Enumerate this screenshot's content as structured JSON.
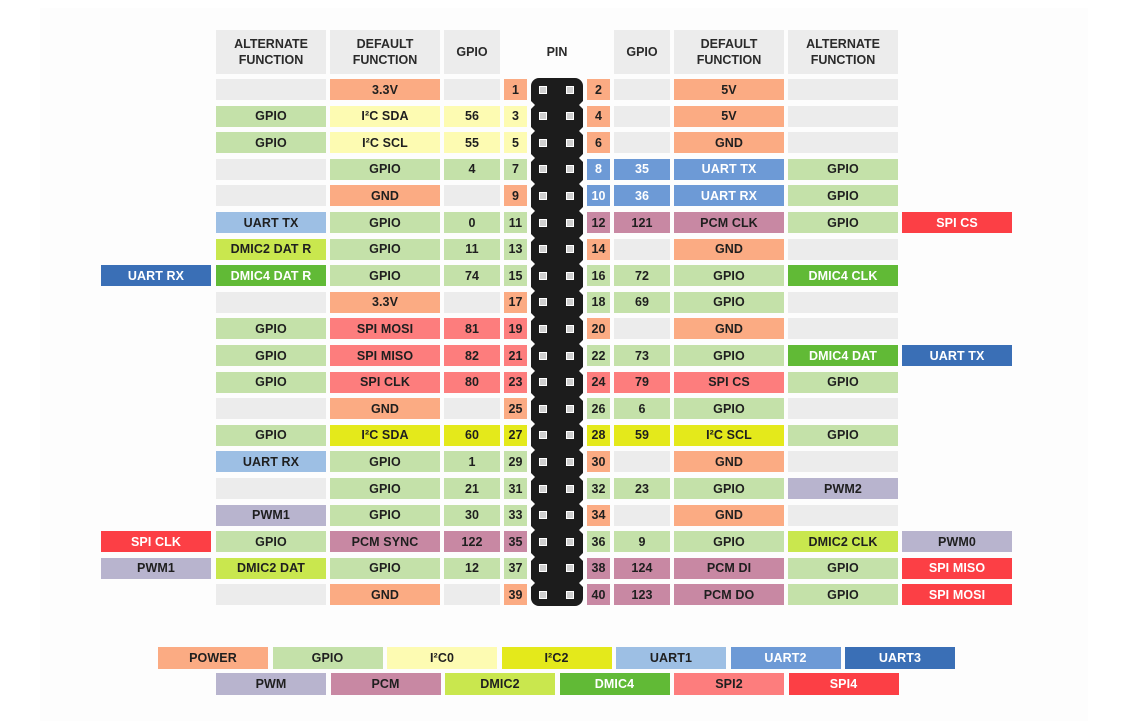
{
  "colors": {
    "power": "#fbab83",
    "gpio": "#c4e1a9",
    "i2c0": "#fdfbb2",
    "i2c2": "#e4e91b",
    "uart1": "#9dbfe4",
    "uart2": "#6d9ad6",
    "uart3": "#3a6fb6",
    "pwm": "#b8b4ce",
    "pcm": "#c888a3",
    "dmic2": "#c9e74e",
    "dmic4": "#61ba36",
    "spi2": "#fd7d7d",
    "spi4": "#fc3f45",
    "empty": "#ececec"
  },
  "headers": {
    "left_alt": "ALTERNATE FUNCTION",
    "left_default": "DEFAULT FUNCTION",
    "left_gpio": "GPIO",
    "pin": "PIN",
    "right_gpio": "GPIO",
    "right_default": "DEFAULT FUNCTION",
    "right_alt": "ALTERNATE FUNCTION"
  },
  "rows": [
    {
      "left": {
        "extra": null,
        "alt": null,
        "def": {
          "text": "3.3V",
          "c": "power"
        },
        "gpio": null,
        "pin": {
          "text": "1",
          "c": "power"
        }
      },
      "right": {
        "pin": {
          "text": "2",
          "c": "power"
        },
        "gpio": null,
        "def": {
          "text": "5V",
          "c": "power"
        },
        "alt": null,
        "extra": null
      }
    },
    {
      "left": {
        "extra": null,
        "alt": {
          "text": "GPIO",
          "c": "gpio"
        },
        "def": {
          "text": "I²C SDA",
          "c": "i2c0"
        },
        "gpio": {
          "text": "56",
          "c": "i2c0"
        },
        "pin": {
          "text": "3",
          "c": "i2c0"
        }
      },
      "right": {
        "pin": {
          "text": "4",
          "c": "power"
        },
        "gpio": null,
        "def": {
          "text": "5V",
          "c": "power"
        },
        "alt": null,
        "extra": null
      }
    },
    {
      "left": {
        "extra": null,
        "alt": {
          "text": "GPIO",
          "c": "gpio"
        },
        "def": {
          "text": "I²C SCL",
          "c": "i2c0"
        },
        "gpio": {
          "text": "55",
          "c": "i2c0"
        },
        "pin": {
          "text": "5",
          "c": "i2c0"
        }
      },
      "right": {
        "pin": {
          "text": "6",
          "c": "power"
        },
        "gpio": null,
        "def": {
          "text": "GND",
          "c": "power"
        },
        "alt": null,
        "extra": null
      }
    },
    {
      "left": {
        "extra": null,
        "alt": null,
        "def": {
          "text": "GPIO",
          "c": "gpio"
        },
        "gpio": {
          "text": "4",
          "c": "gpio"
        },
        "pin": {
          "text": "7",
          "c": "gpio"
        }
      },
      "right": {
        "pin": {
          "text": "8",
          "c": "uart2"
        },
        "gpio": {
          "text": "35",
          "c": "uart2"
        },
        "def": {
          "text": "UART TX",
          "c": "uart2"
        },
        "alt": {
          "text": "GPIO",
          "c": "gpio"
        },
        "extra": null
      }
    },
    {
      "left": {
        "extra": null,
        "alt": null,
        "def": {
          "text": "GND",
          "c": "power"
        },
        "gpio": null,
        "pin": {
          "text": "9",
          "c": "power"
        }
      },
      "right": {
        "pin": {
          "text": "10",
          "c": "uart2"
        },
        "gpio": {
          "text": "36",
          "c": "uart2"
        },
        "def": {
          "text": "UART RX",
          "c": "uart2"
        },
        "alt": {
          "text": "GPIO",
          "c": "gpio"
        },
        "extra": null
      }
    },
    {
      "left": {
        "extra": null,
        "alt": {
          "text": "UART TX",
          "c": "uart1"
        },
        "def": {
          "text": "GPIO",
          "c": "gpio"
        },
        "gpio": {
          "text": "0",
          "c": "gpio"
        },
        "pin": {
          "text": "11",
          "c": "gpio"
        }
      },
      "right": {
        "pin": {
          "text": "12",
          "c": "pcm"
        },
        "gpio": {
          "text": "121",
          "c": "pcm"
        },
        "def": {
          "text": "PCM CLK",
          "c": "pcm"
        },
        "alt": {
          "text": "GPIO",
          "c": "gpio"
        },
        "extra": {
          "text": "SPI CS",
          "c": "spi4"
        }
      }
    },
    {
      "left": {
        "extra": null,
        "alt": {
          "text": "DMIC2 DAT R",
          "c": "dmic2"
        },
        "def": {
          "text": "GPIO",
          "c": "gpio"
        },
        "gpio": {
          "text": "11",
          "c": "gpio"
        },
        "pin": {
          "text": "13",
          "c": "gpio"
        }
      },
      "right": {
        "pin": {
          "text": "14",
          "c": "power"
        },
        "gpio": null,
        "def": {
          "text": "GND",
          "c": "power"
        },
        "alt": null,
        "extra": null
      }
    },
    {
      "left": {
        "extra": {
          "text": "UART RX",
          "c": "uart3"
        },
        "alt": {
          "text": "DMIC4 DAT R",
          "c": "dmic4"
        },
        "def": {
          "text": "GPIO",
          "c": "gpio"
        },
        "gpio": {
          "text": "74",
          "c": "gpio"
        },
        "pin": {
          "text": "15",
          "c": "gpio"
        }
      },
      "right": {
        "pin": {
          "text": "16",
          "c": "gpio"
        },
        "gpio": {
          "text": "72",
          "c": "gpio"
        },
        "def": {
          "text": "GPIO",
          "c": "gpio"
        },
        "alt": {
          "text": "DMIC4 CLK",
          "c": "dmic4"
        },
        "extra": null
      }
    },
    {
      "left": {
        "extra": null,
        "alt": null,
        "def": {
          "text": "3.3V",
          "c": "power"
        },
        "gpio": null,
        "pin": {
          "text": "17",
          "c": "power"
        }
      },
      "right": {
        "pin": {
          "text": "18",
          "c": "gpio"
        },
        "gpio": {
          "text": "69",
          "c": "gpio"
        },
        "def": {
          "text": "GPIO",
          "c": "gpio"
        },
        "alt": null,
        "extra": null
      }
    },
    {
      "left": {
        "extra": null,
        "alt": {
          "text": "GPIO",
          "c": "gpio"
        },
        "def": {
          "text": "SPI MOSI",
          "c": "spi2"
        },
        "gpio": {
          "text": "81",
          "c": "spi2"
        },
        "pin": {
          "text": "19",
          "c": "spi2"
        }
      },
      "right": {
        "pin": {
          "text": "20",
          "c": "power"
        },
        "gpio": null,
        "def": {
          "text": "GND",
          "c": "power"
        },
        "alt": null,
        "extra": null
      }
    },
    {
      "left": {
        "extra": null,
        "alt": {
          "text": "GPIO",
          "c": "gpio"
        },
        "def": {
          "text": "SPI MISO",
          "c": "spi2"
        },
        "gpio": {
          "text": "82",
          "c": "spi2"
        },
        "pin": {
          "text": "21",
          "c": "spi2"
        }
      },
      "right": {
        "pin": {
          "text": "22",
          "c": "gpio"
        },
        "gpio": {
          "text": "73",
          "c": "gpio"
        },
        "def": {
          "text": "GPIO",
          "c": "gpio"
        },
        "alt": {
          "text": "DMIC4 DAT",
          "c": "dmic4"
        },
        "extra": {
          "text": "UART TX",
          "c": "uart3"
        }
      }
    },
    {
      "left": {
        "extra": null,
        "alt": {
          "text": "GPIO",
          "c": "gpio"
        },
        "def": {
          "text": "SPI CLK",
          "c": "spi2"
        },
        "gpio": {
          "text": "80",
          "c": "spi2"
        },
        "pin": {
          "text": "23",
          "c": "spi2"
        }
      },
      "right": {
        "pin": {
          "text": "24",
          "c": "spi2"
        },
        "gpio": {
          "text": "79",
          "c": "spi2"
        },
        "def": {
          "text": "SPI CS",
          "c": "spi2"
        },
        "alt": {
          "text": "GPIO",
          "c": "gpio"
        },
        "extra": null
      }
    },
    {
      "left": {
        "extra": null,
        "alt": null,
        "def": {
          "text": "GND",
          "c": "power"
        },
        "gpio": null,
        "pin": {
          "text": "25",
          "c": "power"
        }
      },
      "right": {
        "pin": {
          "text": "26",
          "c": "gpio"
        },
        "gpio": {
          "text": "6",
          "c": "gpio"
        },
        "def": {
          "text": "GPIO",
          "c": "gpio"
        },
        "alt": null,
        "extra": null
      }
    },
    {
      "left": {
        "extra": null,
        "alt": {
          "text": "GPIO",
          "c": "gpio"
        },
        "def": {
          "text": "I²C SDA",
          "c": "i2c2"
        },
        "gpio": {
          "text": "60",
          "c": "i2c2"
        },
        "pin": {
          "text": "27",
          "c": "i2c2"
        }
      },
      "right": {
        "pin": {
          "text": "28",
          "c": "i2c2"
        },
        "gpio": {
          "text": "59",
          "c": "i2c2"
        },
        "def": {
          "text": "I²C SCL",
          "c": "i2c2"
        },
        "alt": {
          "text": "GPIO",
          "c": "gpio"
        },
        "extra": null
      }
    },
    {
      "left": {
        "extra": null,
        "alt": {
          "text": "UART RX",
          "c": "uart1"
        },
        "def": {
          "text": "GPIO",
          "c": "gpio"
        },
        "gpio": {
          "text": "1",
          "c": "gpio"
        },
        "pin": {
          "text": "29",
          "c": "gpio"
        }
      },
      "right": {
        "pin": {
          "text": "30",
          "c": "power"
        },
        "gpio": null,
        "def": {
          "text": "GND",
          "c": "power"
        },
        "alt": null,
        "extra": null
      }
    },
    {
      "left": {
        "extra": null,
        "alt": null,
        "def": {
          "text": "GPIO",
          "c": "gpio"
        },
        "gpio": {
          "text": "21",
          "c": "gpio"
        },
        "pin": {
          "text": "31",
          "c": "gpio"
        }
      },
      "right": {
        "pin": {
          "text": "32",
          "c": "gpio"
        },
        "gpio": {
          "text": "23",
          "c": "gpio"
        },
        "def": {
          "text": "GPIO",
          "c": "gpio"
        },
        "alt": {
          "text": "PWM2",
          "c": "pwm"
        },
        "extra": null
      }
    },
    {
      "left": {
        "extra": null,
        "alt": {
          "text": "PWM1",
          "c": "pwm"
        },
        "def": {
          "text": "GPIO",
          "c": "gpio"
        },
        "gpio": {
          "text": "30",
          "c": "gpio"
        },
        "pin": {
          "text": "33",
          "c": "gpio"
        }
      },
      "right": {
        "pin": {
          "text": "34",
          "c": "power"
        },
        "gpio": null,
        "def": {
          "text": "GND",
          "c": "power"
        },
        "alt": null,
        "extra": null
      }
    },
    {
      "left": {
        "extra": {
          "text": "SPI CLK",
          "c": "spi4"
        },
        "alt": {
          "text": "GPIO",
          "c": "gpio"
        },
        "def": {
          "text": "PCM SYNC",
          "c": "pcm"
        },
        "gpio": {
          "text": "122",
          "c": "pcm"
        },
        "pin": {
          "text": "35",
          "c": "pcm"
        }
      },
      "right": {
        "pin": {
          "text": "36",
          "c": "gpio"
        },
        "gpio": {
          "text": "9",
          "c": "gpio"
        },
        "def": {
          "text": "GPIO",
          "c": "gpio"
        },
        "alt": {
          "text": "DMIC2 CLK",
          "c": "dmic2"
        },
        "extra": {
          "text": "PWM0",
          "c": "pwm"
        }
      }
    },
    {
      "left": {
        "extra": {
          "text": "PWM1",
          "c": "pwm"
        },
        "alt": {
          "text": "DMIC2 DAT",
          "c": "dmic2"
        },
        "def": {
          "text": "GPIO",
          "c": "gpio"
        },
        "gpio": {
          "text": "12",
          "c": "gpio"
        },
        "pin": {
          "text": "37",
          "c": "gpio"
        }
      },
      "right": {
        "pin": {
          "text": "38",
          "c": "pcm"
        },
        "gpio": {
          "text": "124",
          "c": "pcm"
        },
        "def": {
          "text": "PCM DI",
          "c": "pcm"
        },
        "alt": {
          "text": "GPIO",
          "c": "gpio"
        },
        "extra": {
          "text": "SPI MISO",
          "c": "spi4"
        }
      }
    },
    {
      "left": {
        "extra": null,
        "alt": null,
        "def": {
          "text": "GND",
          "c": "power"
        },
        "gpio": null,
        "pin": {
          "text": "39",
          "c": "power"
        }
      },
      "right": {
        "pin": {
          "text": "40",
          "c": "pcm"
        },
        "gpio": {
          "text": "123",
          "c": "pcm"
        },
        "def": {
          "text": "PCM DO",
          "c": "pcm"
        },
        "alt": {
          "text": "GPIO",
          "c": "gpio"
        },
        "extra": {
          "text": "SPI MOSI",
          "c": "spi4"
        }
      }
    }
  ],
  "legend": {
    "row1": [
      {
        "label": "POWER",
        "c": "power"
      },
      {
        "label": "GPIO",
        "c": "gpio"
      },
      {
        "label": "I²C0",
        "c": "i2c0"
      },
      {
        "label": "I²C2",
        "c": "i2c2"
      },
      {
        "label": "UART1",
        "c": "uart1"
      },
      {
        "label": "UART2",
        "c": "uart2"
      },
      {
        "label": "UART3",
        "c": "uart3"
      }
    ],
    "row2": [
      {
        "label": "PWM",
        "c": "pwm"
      },
      {
        "label": "PCM",
        "c": "pcm"
      },
      {
        "label": "DMIC2",
        "c": "dmic2"
      },
      {
        "label": "DMIC4",
        "c": "dmic4"
      },
      {
        "label": "SPI2",
        "c": "spi2"
      },
      {
        "label": "SPI4",
        "c": "spi4"
      }
    ]
  }
}
